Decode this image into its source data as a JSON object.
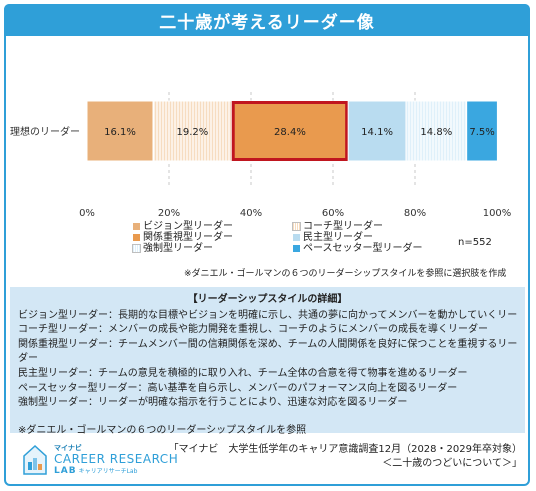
{
  "title": "二十歳が考えるリーダー像",
  "chart_data": {
    "type": "bar",
    "orientation": "horizontal-stacked-100",
    "categories": [
      "理想のリーダー"
    ],
    "series": [
      {
        "name": "ビジョン型リーダー",
        "values": [
          16.1
        ],
        "label": "16.1%",
        "color": "#e8b07a",
        "pattern": "none"
      },
      {
        "name": "コーチ型リーダー",
        "values": [
          19.2
        ],
        "label": "19.2%",
        "color": "#f6dcc0",
        "pattern": "vertical-lines"
      },
      {
        "name": "関係重視型リーダー",
        "values": [
          28.4
        ],
        "label": "28.4%",
        "color": "#e99a4e",
        "pattern": "none",
        "highlight": true
      },
      {
        "name": "民主型リーダー",
        "values": [
          14.1
        ],
        "label": "14.1%",
        "color": "#b9dcf0",
        "pattern": "none"
      },
      {
        "name": "強制型リーダー",
        "values": [
          14.8
        ],
        "label": "14.8%",
        "color": "#dff0fa",
        "pattern": "vertical-lines"
      },
      {
        "name": "ペースセッター型リーダー",
        "values": [
          7.5
        ],
        "label": "7.5%",
        "color": "#3aa7e0",
        "pattern": "none"
      }
    ],
    "xlim": [
      0,
      100
    ],
    "xticks": [
      "0%",
      "20%",
      "40%",
      "60%",
      "80%",
      "100%"
    ],
    "grid": "vertical-dashed",
    "legend_position": "bottom",
    "highlight_color": "#c0161f"
  },
  "legend": {
    "items": [
      {
        "label": "ビジョン型リーダー",
        "color": "#e8b07a",
        "hatched": false
      },
      {
        "label": "関係重視型リーダー",
        "color": "#e99a4e",
        "hatched": false
      },
      {
        "label": "強制型リーダー",
        "color": "#dff0fa",
        "hatched": true
      },
      {
        "label": "コーチ型リーダー",
        "color": "#f6dcc0",
        "hatched": true
      },
      {
        "label": "民主型リーダー",
        "color": "#b9dcf0",
        "hatched": false
      },
      {
        "label": "ペースセッター型リーダー",
        "color": "#3aa7e0",
        "hatched": false
      }
    ]
  },
  "sample_size": "n=552",
  "chart_note": "※ダニエル・ゴールマンの６つのリーダーシップスタイルを参照に選択肢を作成",
  "details": {
    "heading": "【リーダーシップスタイルの詳細】",
    "lines": [
      "ビジョン型リーダー：長期的な目標やビジョンを明確に示し、共通の夢に向かってメンバーを動かしていくリーダー",
      "コーチ型リーダー：メンバーの成長や能力開発を重視し、コーチのようにメンバーの成長を導くリーダー",
      "関係重視型リーダー：チームメンバー間の信頼関係を深め、チームの人間関係を良好に保つことを重視するリー",
      "ダー",
      "民主型リーダー：チームの意見を積極的に取り入れ、チーム全体の合意を得て物事を進めるリーダー",
      "ペースセッター型リーダー：高い基準を自ら示し、メンバーのパフォーマンス向上を図るリーダー",
      "強制型リーダー：リーダーが明確な指示を行うことにより、迅速な対応を図るリーダー"
    ],
    "note": "※ダニエル・ゴールマンの６つのリーダーシップスタイルを参照"
  },
  "logo": {
    "small": "マイナビ",
    "main": "CAREER RESEARCH",
    "lab": "LAB",
    "lab_sub": "キャリアリサーチLab"
  },
  "source": {
    "line1": "「マイナビ　大学生低学年のキャリア意識調査12月（2028・2029年卒対象）",
    "line2": "＜二十歳のつどいについて＞」"
  }
}
